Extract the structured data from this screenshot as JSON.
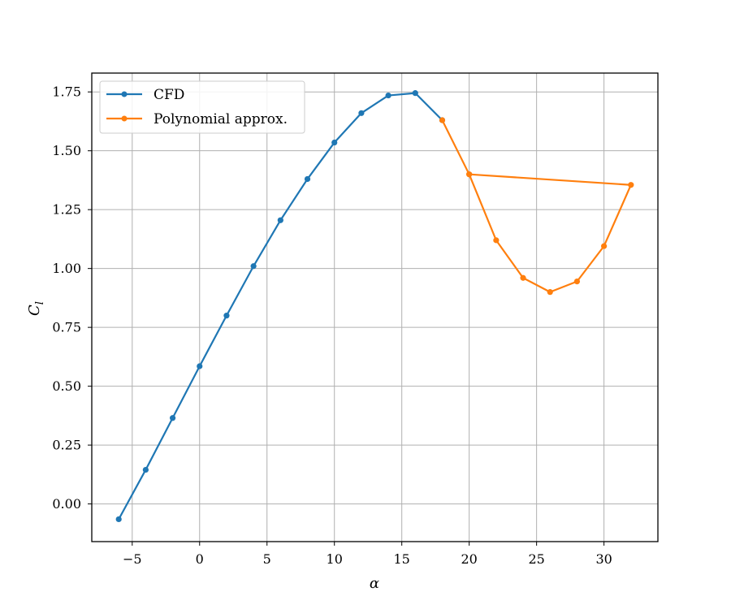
{
  "chart_data": {
    "type": "line",
    "xlabel": "α",
    "ylabel_main": "C",
    "ylabel_sub": "l",
    "xlim": [
      -8,
      34
    ],
    "ylim": [
      -0.16,
      1.83
    ],
    "xticks": [
      -5,
      0,
      5,
      10,
      15,
      20,
      25,
      30
    ],
    "xtick_labels": [
      "−5",
      "0",
      "5",
      "10",
      "15",
      "20",
      "25",
      "30"
    ],
    "yticks": [
      0.0,
      0.25,
      0.5,
      0.75,
      1.0,
      1.25,
      1.5,
      1.75
    ],
    "ytick_labels": [
      "0.00",
      "0.25",
      "0.50",
      "0.75",
      "1.00",
      "1.25",
      "1.50",
      "1.75"
    ],
    "grid": true,
    "legend_position": "top-left",
    "series": [
      {
        "name": "CFD",
        "color": "#1f77b4",
        "x": [
          -6,
          -4,
          -2,
          0,
          2,
          4,
          6,
          8,
          10,
          12,
          14,
          16,
          18
        ],
        "y": [
          -0.065,
          0.145,
          0.365,
          0.585,
          0.8,
          1.01,
          1.205,
          1.38,
          1.535,
          1.66,
          1.735,
          1.745,
          1.63
        ]
      },
      {
        "name": "Polynomial approx.",
        "color": "#ff7f0e",
        "x": [
          18,
          20,
          22,
          24,
          26,
          28,
          30,
          32,
          20
        ],
        "y": [
          1.63,
          1.4,
          1.12,
          0.96,
          0.9,
          0.945,
          1.095,
          1.355,
          1.4
        ]
      }
    ]
  }
}
